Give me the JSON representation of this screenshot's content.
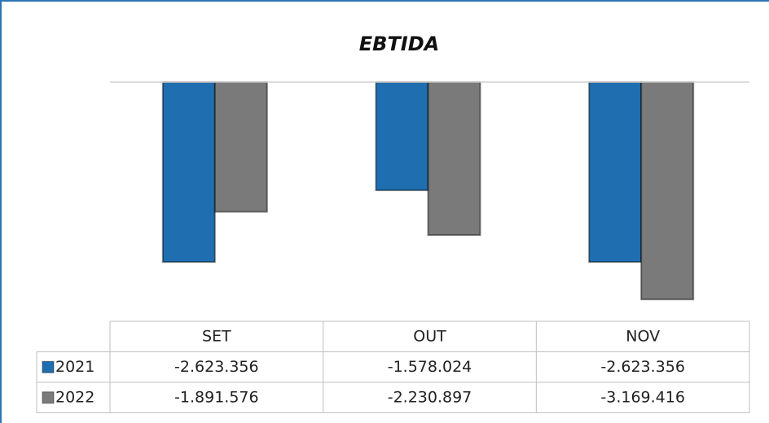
{
  "chart_data": {
    "type": "bar",
    "title": "EBTIDA",
    "categories": [
      "SET",
      "OUT",
      "NOV"
    ],
    "series": [
      {
        "name": "2021",
        "color": "#1f6eb0",
        "values": [
          -2623356,
          -1578024,
          -2623356
        ],
        "value_labels": [
          "-2.623.356",
          "-1.578.024",
          "-2.623.356"
        ]
      },
      {
        "name": "2022",
        "color": "#7a7a7a",
        "values": [
          -1891576,
          -2230897,
          -3169416
        ],
        "value_labels": [
          "-1.891.576",
          "-2.230.897",
          "-3.169.416"
        ]
      }
    ],
    "ylim": [
      -3500000,
      0
    ]
  }
}
